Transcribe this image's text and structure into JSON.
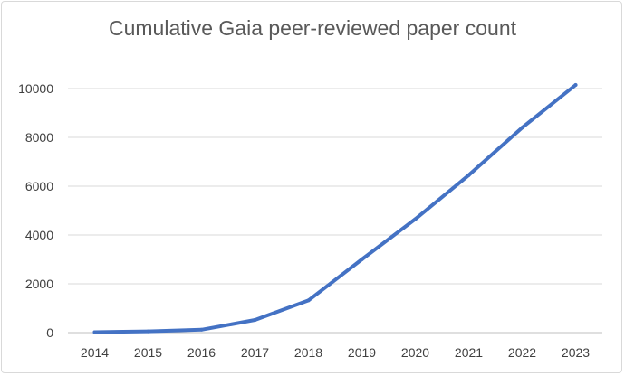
{
  "chart_data": {
    "type": "line",
    "title": "Cumulative Gaia peer-reviewed paper count",
    "xlabel": "",
    "ylabel": "",
    "categories": [
      "2014",
      "2015",
      "2016",
      "2017",
      "2018",
      "2019",
      "2020",
      "2021",
      "2022",
      "2023"
    ],
    "series": [
      {
        "values": [
          20,
          50,
          120,
          520,
          1320,
          3000,
          4650,
          6450,
          8400,
          10150
        ],
        "color": "#4472c4"
      }
    ],
    "ylim": [
      0,
      10000
    ],
    "yticks": [
      0,
      2000,
      4000,
      6000,
      8000,
      10000
    ],
    "grid": true,
    "legend": "none"
  }
}
